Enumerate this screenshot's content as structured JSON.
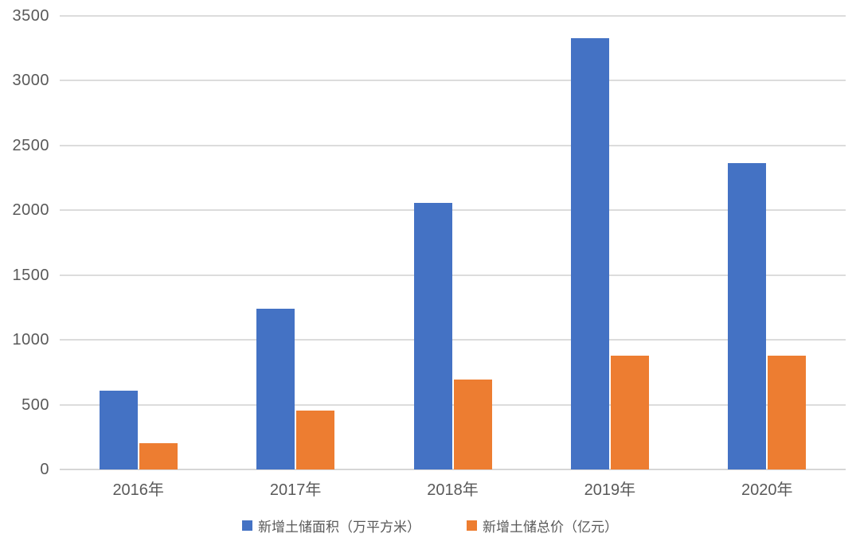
{
  "chart_data": {
    "type": "bar",
    "title": "",
    "categories": [
      "2016年",
      "2017年",
      "2018年",
      "2019年",
      "2020年"
    ],
    "series": [
      {
        "name": "新增土储面积（万平方米）",
        "key": "land-area",
        "color": "#4472c4",
        "values": [
          605,
          1240,
          2055,
          3330,
          2365
        ]
      },
      {
        "name": "新增土储总价（亿元）",
        "key": "land-price",
        "color": "#ed7d31",
        "values": [
          200,
          455,
          695,
          880,
          880
        ]
      }
    ],
    "xlabel": "",
    "ylabel": "",
    "ylim": [
      0,
      3500
    ],
    "ytick_step": 500,
    "y_ticks": [
      "0",
      "500",
      "1000",
      "1500",
      "2000",
      "2500",
      "3000",
      "3500"
    ],
    "grid": true,
    "gridline_color": "#dcdcdc",
    "axis_text_color": "#595959",
    "legend_position": "bottom"
  }
}
